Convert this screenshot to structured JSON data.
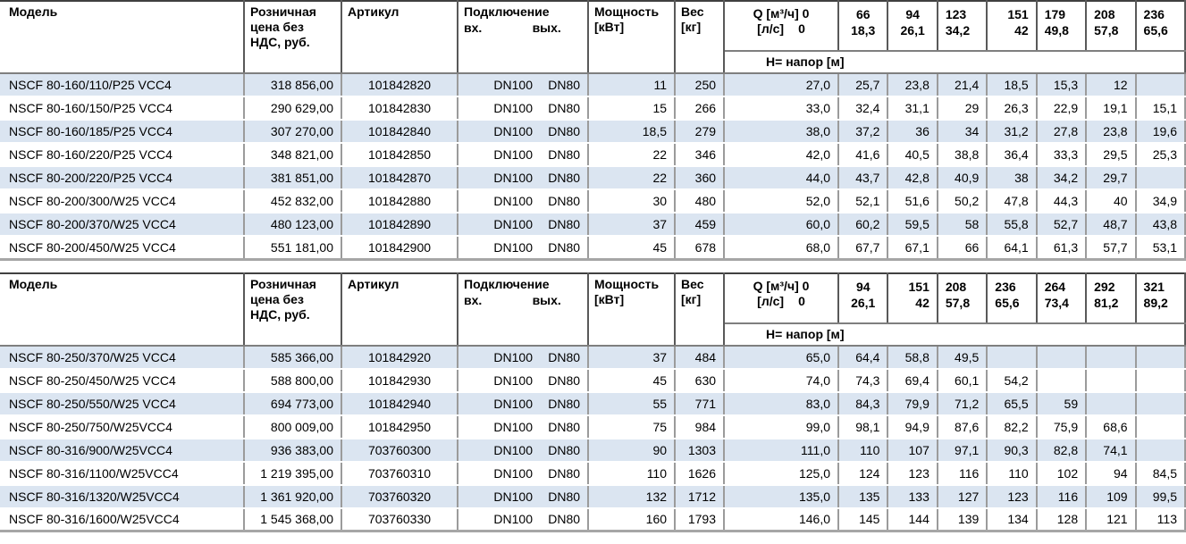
{
  "colors": {
    "row_stripe": "#dbe5f1",
    "table_top_border": "#404040",
    "table_bottom_border": "#a6a6a6",
    "header_grid": "#595959",
    "body_grid": "#9b9b9b",
    "header_rule": "#7f7f7f",
    "text": "#000000"
  },
  "tables": [
    {
      "header": {
        "model": "Модель",
        "price": "Розничная цена без НДС, руб.",
        "article": "Артикул",
        "connection": "Подключение",
        "connection_in": "вх.",
        "connection_out": "вых.",
        "power": "Мощность [кВт]",
        "weight": "Вес [кг]",
        "q_m3h": "Q [м³/ч] 0",
        "q_ls": "[л/с]",
        "q_ls_zero": "0",
        "head_label": "H= напор [м]",
        "flow_columns": [
          {
            "m3h": "66",
            "ls": "18,3",
            "align": "center"
          },
          {
            "m3h": "94",
            "ls": "26,1",
            "align": "center"
          },
          {
            "m3h": "123",
            "ls": "34,2",
            "align": "left"
          },
          {
            "m3h": "151",
            "ls": "42",
            "align": "right"
          },
          {
            "m3h": "179",
            "ls": "49,8",
            "align": "left"
          },
          {
            "m3h": "208",
            "ls": "57,8",
            "align": "left"
          },
          {
            "m3h": "236",
            "ls": "65,6",
            "align": "left"
          }
        ]
      },
      "rows": [
        {
          "model": "NSCF 80-160/110/P25 VCC4",
          "price": "318 856,00",
          "article": "101842820",
          "conn_in": "DN100",
          "conn_out": "DN80",
          "power": "11",
          "weight": "250",
          "q0": "27,0",
          "h": [
            "25,7",
            "23,8",
            "21,4",
            "18,5",
            "15,3",
            "12",
            ""
          ]
        },
        {
          "model": "NSCF 80-160/150/P25 VCC4",
          "price": "290 629,00",
          "article": "101842830",
          "conn_in": "DN100",
          "conn_out": "DN80",
          "power": "15",
          "weight": "266",
          "q0": "33,0",
          "h": [
            "32,4",
            "31,1",
            "29",
            "26,3",
            "22,9",
            "19,1",
            "15,1"
          ]
        },
        {
          "model": "NSCF 80-160/185/P25 VCC4",
          "price": "307 270,00",
          "article": "101842840",
          "conn_in": "DN100",
          "conn_out": "DN80",
          "power": "18,5",
          "weight": "279",
          "q0": "38,0",
          "h": [
            "37,2",
            "36",
            "34",
            "31,2",
            "27,8",
            "23,8",
            "19,6"
          ]
        },
        {
          "model": "NSCF 80-160/220/P25 VCC4",
          "price": "348 821,00",
          "article": "101842850",
          "conn_in": "DN100",
          "conn_out": "DN80",
          "power": "22",
          "weight": "346",
          "q0": "42,0",
          "h": [
            "41,6",
            "40,5",
            "38,8",
            "36,4",
            "33,3",
            "29,5",
            "25,3"
          ]
        },
        {
          "model": "NSCF 80-200/220/P25 VCC4",
          "price": "381 851,00",
          "article": "101842870",
          "conn_in": "DN100",
          "conn_out": "DN80",
          "power": "22",
          "weight": "360",
          "q0": "44,0",
          "h": [
            "43,7",
            "42,8",
            "40,9",
            "38",
            "34,2",
            "29,7",
            ""
          ]
        },
        {
          "model": "NSCF 80-200/300/W25 VCC4",
          "price": "452 832,00",
          "article": "101842880",
          "conn_in": "DN100",
          "conn_out": "DN80",
          "power": "30",
          "weight": "480",
          "q0": "52,0",
          "h": [
            "52,1",
            "51,6",
            "50,2",
            "47,8",
            "44,3",
            "40",
            "34,9"
          ]
        },
        {
          "model": "NSCF 80-200/370/W25 VCC4",
          "price": "480 123,00",
          "article": "101842890",
          "conn_in": "DN100",
          "conn_out": "DN80",
          "power": "37",
          "weight": "459",
          "q0": "60,0",
          "h": [
            "60,2",
            "59,5",
            "58",
            "55,8",
            "52,7",
            "48,7",
            "43,8"
          ]
        },
        {
          "model": "NSCF 80-200/450/W25 VCC4",
          "price": "551 181,00",
          "article": "101842900",
          "conn_in": "DN100",
          "conn_out": "DN80",
          "power": "45",
          "weight": "678",
          "q0": "68,0",
          "h": [
            "67,7",
            "67,1",
            "66",
            "64,1",
            "61,3",
            "57,7",
            "53,1"
          ]
        }
      ]
    },
    {
      "header": {
        "model": "Модель",
        "price": "Розничная цена без НДС, руб.",
        "article": "Артикул",
        "connection": "Подключение",
        "connection_in": "вх.",
        "connection_out": "вых.",
        "power": "Мощность [кВт]",
        "weight": "Вес [кг]",
        "q_m3h": "Q [м³/ч] 0",
        "q_ls": "[л/с]",
        "q_ls_zero": "0",
        "head_label": "H= напор [м]",
        "flow_columns": [
          {
            "m3h": "94",
            "ls": "26,1",
            "align": "center"
          },
          {
            "m3h": "151",
            "ls": "42",
            "align": "right"
          },
          {
            "m3h": "208",
            "ls": "57,8",
            "align": "left"
          },
          {
            "m3h": "236",
            "ls": "65,6",
            "align": "left"
          },
          {
            "m3h": "264",
            "ls": "73,4",
            "align": "left"
          },
          {
            "m3h": "292",
            "ls": "81,2",
            "align": "left"
          },
          {
            "m3h": "321",
            "ls": "89,2",
            "align": "left"
          }
        ]
      },
      "rows": [
        {
          "model": "NSCF 80-250/370/W25 VCC4",
          "price": "585 366,00",
          "article": "101842920",
          "conn_in": "DN100",
          "conn_out": "DN80",
          "power": "37",
          "weight": "484",
          "q0": "65,0",
          "h": [
            "64,4",
            "58,8",
            "49,5",
            "",
            "",
            "",
            ""
          ]
        },
        {
          "model": "NSCF 80-250/450/W25 VCC4",
          "price": "588 800,00",
          "article": "101842930",
          "conn_in": "DN100",
          "conn_out": "DN80",
          "power": "45",
          "weight": "630",
          "q0": "74,0",
          "h": [
            "74,3",
            "69,4",
            "60,1",
            "54,2",
            "",
            "",
            ""
          ]
        },
        {
          "model": "NSCF 80-250/550/W25 VCC4",
          "price": "694 773,00",
          "article": "101842940",
          "conn_in": "DN100",
          "conn_out": "DN80",
          "power": "55",
          "weight": "771",
          "q0": "83,0",
          "h": [
            "84,3",
            "79,9",
            "71,2",
            "65,5",
            "59",
            "",
            ""
          ]
        },
        {
          "model": "NSCF 80-250/750/W25VCC4",
          "price": "800 009,00",
          "article": "101842950",
          "conn_in": "DN100",
          "conn_out": "DN80",
          "power": "75",
          "weight": "984",
          "q0": "99,0",
          "h": [
            "98,1",
            "94,9",
            "87,6",
            "82,2",
            "75,9",
            "68,6",
            ""
          ]
        },
        {
          "model": "NSCF 80-316/900/W25VCC4",
          "price": "936 383,00",
          "article": "703760300",
          "conn_in": "DN100",
          "conn_out": "DN80",
          "power": "90",
          "weight": "1303",
          "q0": "111,0",
          "h": [
            "110",
            "107",
            "97,1",
            "90,3",
            "82,8",
            "74,1",
            ""
          ]
        },
        {
          "model": "NSCF 80-316/1100/W25VCC4",
          "price": "1 219 395,00",
          "article": "703760310",
          "conn_in": "DN100",
          "conn_out": "DN80",
          "power": "110",
          "weight": "1626",
          "q0": "125,0",
          "h": [
            "124",
            "123",
            "116",
            "110",
            "102",
            "94",
            "84,5"
          ]
        },
        {
          "model": "NSCF 80-316/1320/W25VCC4",
          "price": "1 361 920,00",
          "article": "703760320",
          "conn_in": "DN100",
          "conn_out": "DN80",
          "power": "132",
          "weight": "1712",
          "q0": "135,0",
          "h": [
            "135",
            "133",
            "127",
            "123",
            "116",
            "109",
            "99,5"
          ]
        },
        {
          "model": "NSCF 80-316/1600/W25VCC4",
          "price": "1 545 368,00",
          "article": "703760330",
          "conn_in": "DN100",
          "conn_out": "DN80",
          "power": "160",
          "weight": "1793",
          "q0": "146,0",
          "h": [
            "145",
            "144",
            "139",
            "134",
            "128",
            "121",
            "113"
          ]
        }
      ]
    }
  ]
}
